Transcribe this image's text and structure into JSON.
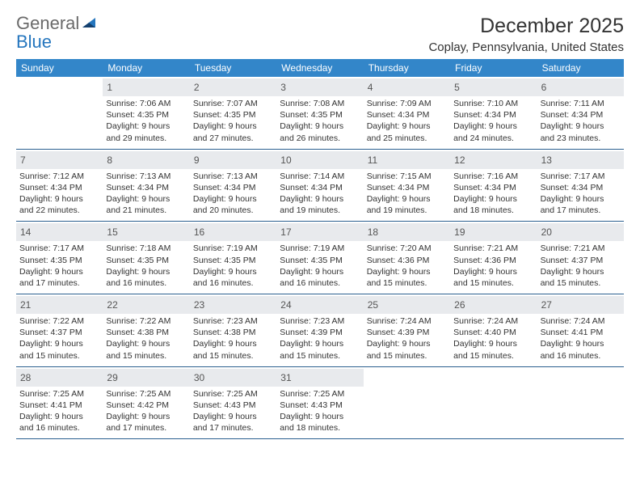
{
  "logo": {
    "word1": "General",
    "word2": "Blue"
  },
  "title": "December 2025",
  "location": "Coplay, Pennsylvania, United States",
  "daynames": [
    "Sunday",
    "Monday",
    "Tuesday",
    "Wednesday",
    "Thursday",
    "Friday",
    "Saturday"
  ],
  "colors": {
    "header_bg": "#3386c9",
    "row_border": "#2a5f8f",
    "daynum_bg": "#e8eaed",
    "logo_blue": "#2576be",
    "text": "#333333"
  },
  "weeks": [
    [
      null,
      {
        "n": "1",
        "sr": "Sunrise: 7:06 AM",
        "ss": "Sunset: 4:35 PM",
        "d1": "Daylight: 9 hours",
        "d2": "and 29 minutes."
      },
      {
        "n": "2",
        "sr": "Sunrise: 7:07 AM",
        "ss": "Sunset: 4:35 PM",
        "d1": "Daylight: 9 hours",
        "d2": "and 27 minutes."
      },
      {
        "n": "3",
        "sr": "Sunrise: 7:08 AM",
        "ss": "Sunset: 4:35 PM",
        "d1": "Daylight: 9 hours",
        "d2": "and 26 minutes."
      },
      {
        "n": "4",
        "sr": "Sunrise: 7:09 AM",
        "ss": "Sunset: 4:34 PM",
        "d1": "Daylight: 9 hours",
        "d2": "and 25 minutes."
      },
      {
        "n": "5",
        "sr": "Sunrise: 7:10 AM",
        "ss": "Sunset: 4:34 PM",
        "d1": "Daylight: 9 hours",
        "d2": "and 24 minutes."
      },
      {
        "n": "6",
        "sr": "Sunrise: 7:11 AM",
        "ss": "Sunset: 4:34 PM",
        "d1": "Daylight: 9 hours",
        "d2": "and 23 minutes."
      }
    ],
    [
      {
        "n": "7",
        "sr": "Sunrise: 7:12 AM",
        "ss": "Sunset: 4:34 PM",
        "d1": "Daylight: 9 hours",
        "d2": "and 22 minutes."
      },
      {
        "n": "8",
        "sr": "Sunrise: 7:13 AM",
        "ss": "Sunset: 4:34 PM",
        "d1": "Daylight: 9 hours",
        "d2": "and 21 minutes."
      },
      {
        "n": "9",
        "sr": "Sunrise: 7:13 AM",
        "ss": "Sunset: 4:34 PM",
        "d1": "Daylight: 9 hours",
        "d2": "and 20 minutes."
      },
      {
        "n": "10",
        "sr": "Sunrise: 7:14 AM",
        "ss": "Sunset: 4:34 PM",
        "d1": "Daylight: 9 hours",
        "d2": "and 19 minutes."
      },
      {
        "n": "11",
        "sr": "Sunrise: 7:15 AM",
        "ss": "Sunset: 4:34 PM",
        "d1": "Daylight: 9 hours",
        "d2": "and 19 minutes."
      },
      {
        "n": "12",
        "sr": "Sunrise: 7:16 AM",
        "ss": "Sunset: 4:34 PM",
        "d1": "Daylight: 9 hours",
        "d2": "and 18 minutes."
      },
      {
        "n": "13",
        "sr": "Sunrise: 7:17 AM",
        "ss": "Sunset: 4:34 PM",
        "d1": "Daylight: 9 hours",
        "d2": "and 17 minutes."
      }
    ],
    [
      {
        "n": "14",
        "sr": "Sunrise: 7:17 AM",
        "ss": "Sunset: 4:35 PM",
        "d1": "Daylight: 9 hours",
        "d2": "and 17 minutes."
      },
      {
        "n": "15",
        "sr": "Sunrise: 7:18 AM",
        "ss": "Sunset: 4:35 PM",
        "d1": "Daylight: 9 hours",
        "d2": "and 16 minutes."
      },
      {
        "n": "16",
        "sr": "Sunrise: 7:19 AM",
        "ss": "Sunset: 4:35 PM",
        "d1": "Daylight: 9 hours",
        "d2": "and 16 minutes."
      },
      {
        "n": "17",
        "sr": "Sunrise: 7:19 AM",
        "ss": "Sunset: 4:35 PM",
        "d1": "Daylight: 9 hours",
        "d2": "and 16 minutes."
      },
      {
        "n": "18",
        "sr": "Sunrise: 7:20 AM",
        "ss": "Sunset: 4:36 PM",
        "d1": "Daylight: 9 hours",
        "d2": "and 15 minutes."
      },
      {
        "n": "19",
        "sr": "Sunrise: 7:21 AM",
        "ss": "Sunset: 4:36 PM",
        "d1": "Daylight: 9 hours",
        "d2": "and 15 minutes."
      },
      {
        "n": "20",
        "sr": "Sunrise: 7:21 AM",
        "ss": "Sunset: 4:37 PM",
        "d1": "Daylight: 9 hours",
        "d2": "and 15 minutes."
      }
    ],
    [
      {
        "n": "21",
        "sr": "Sunrise: 7:22 AM",
        "ss": "Sunset: 4:37 PM",
        "d1": "Daylight: 9 hours",
        "d2": "and 15 minutes."
      },
      {
        "n": "22",
        "sr": "Sunrise: 7:22 AM",
        "ss": "Sunset: 4:38 PM",
        "d1": "Daylight: 9 hours",
        "d2": "and 15 minutes."
      },
      {
        "n": "23",
        "sr": "Sunrise: 7:23 AM",
        "ss": "Sunset: 4:38 PM",
        "d1": "Daylight: 9 hours",
        "d2": "and 15 minutes."
      },
      {
        "n": "24",
        "sr": "Sunrise: 7:23 AM",
        "ss": "Sunset: 4:39 PM",
        "d1": "Daylight: 9 hours",
        "d2": "and 15 minutes."
      },
      {
        "n": "25",
        "sr": "Sunrise: 7:24 AM",
        "ss": "Sunset: 4:39 PM",
        "d1": "Daylight: 9 hours",
        "d2": "and 15 minutes."
      },
      {
        "n": "26",
        "sr": "Sunrise: 7:24 AM",
        "ss": "Sunset: 4:40 PM",
        "d1": "Daylight: 9 hours",
        "d2": "and 15 minutes."
      },
      {
        "n": "27",
        "sr": "Sunrise: 7:24 AM",
        "ss": "Sunset: 4:41 PM",
        "d1": "Daylight: 9 hours",
        "d2": "and 16 minutes."
      }
    ],
    [
      {
        "n": "28",
        "sr": "Sunrise: 7:25 AM",
        "ss": "Sunset: 4:41 PM",
        "d1": "Daylight: 9 hours",
        "d2": "and 16 minutes."
      },
      {
        "n": "29",
        "sr": "Sunrise: 7:25 AM",
        "ss": "Sunset: 4:42 PM",
        "d1": "Daylight: 9 hours",
        "d2": "and 17 minutes."
      },
      {
        "n": "30",
        "sr": "Sunrise: 7:25 AM",
        "ss": "Sunset: 4:43 PM",
        "d1": "Daylight: 9 hours",
        "d2": "and 17 minutes."
      },
      {
        "n": "31",
        "sr": "Sunrise: 7:25 AM",
        "ss": "Sunset: 4:43 PM",
        "d1": "Daylight: 9 hours",
        "d2": "and 18 minutes."
      },
      null,
      null,
      null
    ]
  ]
}
